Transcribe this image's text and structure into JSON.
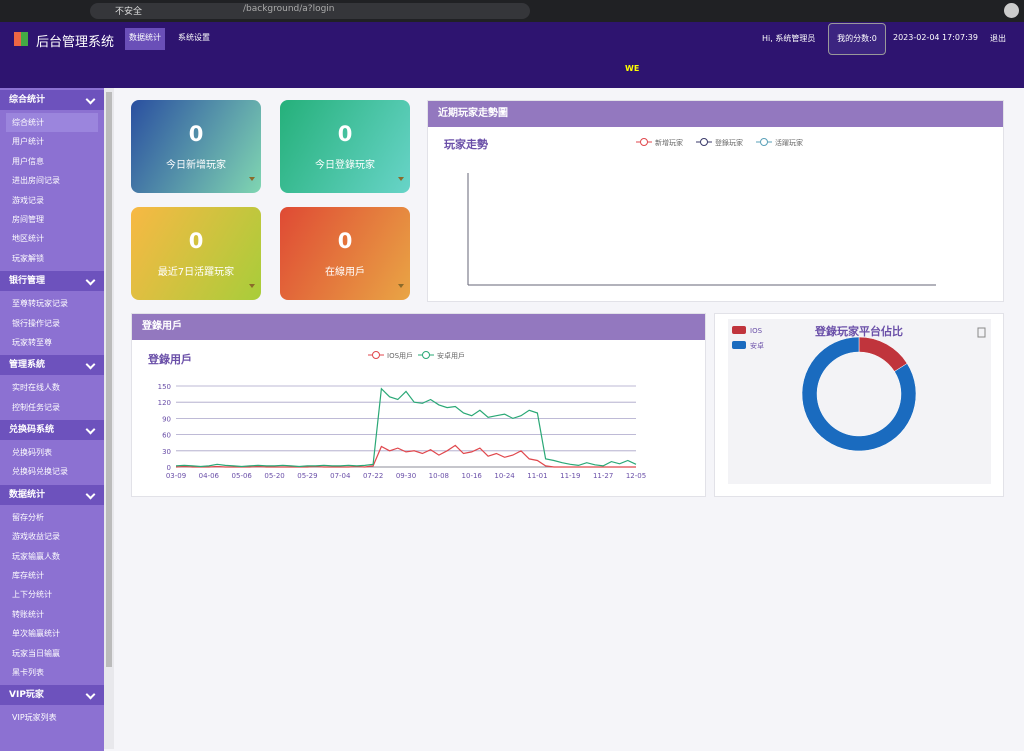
{
  "browser": {
    "security": "不安全",
    "url": "/background/a?login"
  },
  "header": {
    "title": "后台管理系统",
    "nav": [
      "数据统计",
      "系统设置"
    ],
    "greeting": "Hi, 系统管理员",
    "score": "我的分数:0",
    "datetime": "2023-02-04 17:07:39",
    "logout": "退出",
    "marquee": "WE"
  },
  "sidebar": [
    {
      "title": "综合统计",
      "items": [
        "综合统计",
        "用户统计",
        "用户信息",
        "进出房间记录",
        "游戏记录",
        "房间管理",
        "地区统计",
        "玩家解锁"
      ]
    },
    {
      "title": "银行管理",
      "items": [
        "至尊转玩家记录",
        "银行操作记录",
        "玩家转至尊"
      ]
    },
    {
      "title": "管理系統",
      "items": [
        "实时在线人数",
        "控制任务记录"
      ]
    },
    {
      "title": "兑换码系统",
      "items": [
        "兑换码列表",
        "兑换码兑换记录"
      ]
    },
    {
      "title": "数据统计",
      "items": [
        "留存分析",
        "游戏收益记录",
        "玩家输赢人数",
        "库存统计",
        "上下分统计",
        "转账统计",
        "单次输赢统计",
        "玩家当日输赢",
        "黑卡列表"
      ]
    },
    {
      "title": "VIP玩家",
      "items": [
        "VIP玩家列表"
      ]
    }
  ],
  "cards": [
    {
      "value": 0,
      "label": "今日新增玩家"
    },
    {
      "value": 0,
      "label": "今日登錄玩家"
    },
    {
      "value": 0,
      "label": "最近7日活躍玩家"
    },
    {
      "value": 0,
      "label": "在線用戶"
    }
  ],
  "trend_panel": {
    "title": "近期玩家走勢圖",
    "chart_title": "玩家走勢",
    "legend": [
      "新增玩家",
      "登錄玩家",
      "活躍玩家"
    ]
  },
  "login_panel": {
    "title": "登錄用戶",
    "chart_data": {
      "type": "line",
      "title": "登錄用戶",
      "categories": [
        "03-09",
        null,
        null,
        null,
        "04-06",
        null,
        null,
        null,
        "05-06",
        null,
        null,
        null,
        "05-20",
        null,
        null,
        null,
        "05-29",
        null,
        null,
        null,
        "07-04",
        null,
        null,
        null,
        "07-22",
        null,
        null,
        null,
        "09-30",
        null,
        null,
        null,
        "10-08",
        null,
        null,
        null,
        "10-16",
        null,
        null,
        null,
        "10-24",
        null,
        null,
        null,
        "11-01",
        null,
        null,
        null,
        "11-19",
        null,
        null,
        null,
        "11-27",
        null,
        null,
        null,
        "12-05"
      ],
      "series": [
        {
          "name": "IOS用戶",
          "color": "#e0474c",
          "values": [
            0,
            1,
            0,
            0,
            0,
            1,
            0,
            0,
            0,
            0,
            1,
            0,
            0,
            0,
            0,
            0,
            0,
            1,
            0,
            0,
            0,
            0,
            1,
            0,
            2,
            38,
            30,
            35,
            28,
            30,
            25,
            32,
            22,
            30,
            40,
            25,
            28,
            35,
            20,
            25,
            18,
            22,
            30,
            15,
            12,
            2,
            0,
            0,
            0,
            0,
            0,
            0,
            0,
            0,
            0,
            0,
            0
          ]
        },
        {
          "name": "安卓用戶",
          "color": "#2aa876",
          "values": [
            2,
            3,
            2,
            1,
            2,
            5,
            3,
            2,
            1,
            2,
            3,
            2,
            2,
            3,
            2,
            1,
            2,
            2,
            3,
            2,
            2,
            3,
            2,
            3,
            5,
            145,
            130,
            125,
            140,
            120,
            118,
            125,
            115,
            110,
            112,
            100,
            95,
            105,
            92,
            95,
            98,
            90,
            95,
            105,
            100,
            15,
            12,
            8,
            5,
            3,
            8,
            4,
            2,
            10,
            6,
            12,
            5
          ]
        }
      ],
      "ylim": [
        0,
        150
      ],
      "yticks": [
        0,
        30,
        60,
        90,
        120,
        150
      ],
      "grid": true
    }
  },
  "platform_panel": {
    "chart_data": {
      "type": "pie",
      "title": "登錄玩家平台佔比",
      "categories": [
        "IOS",
        "安卓"
      ],
      "values": [
        16,
        84
      ],
      "colors": [
        "#c0343c",
        "#1a6bbf"
      ]
    }
  }
}
